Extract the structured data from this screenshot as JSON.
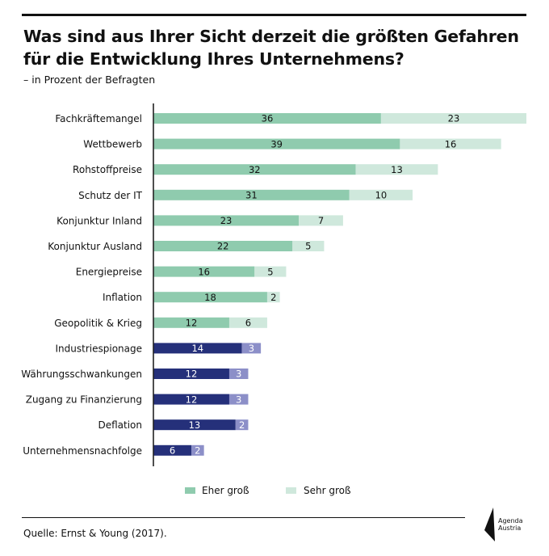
{
  "header": {
    "title_line1": "Was sind aus Ihrer Sicht derzeit die größten Gefahren",
    "title_line2": "für die Entwicklung Ihres Unternehmens?",
    "subtitle": "– in Prozent der Befragten"
  },
  "footer": {
    "source": "Quelle: Ernst & Young (2017).",
    "logo_line1": "Agenda",
    "logo_line2": "Austria"
  },
  "colors": {
    "green_dark": "#8fcbae",
    "green_light": "#cfe8dc",
    "navy_dark": "#25307a",
    "navy_light": "#8c8fc8",
    "axis": "#222222"
  },
  "chart_data": {
    "type": "bar",
    "orientation": "horizontal",
    "stacked": true,
    "categories": [
      "Fachkräftemangel",
      "Wettbewerb",
      "Rohstoffpreise",
      "Schutz der IT",
      "Konjunktur Inland",
      "Konjunktur Ausland",
      "Energiepreise",
      "Inflation",
      "Geopolitik & Krieg",
      "Industriespionage",
      "Währungsschwankungen",
      "Zugang zu Finanzierung",
      "Deflation",
      "Unternehmensnachfolge"
    ],
    "series": [
      {
        "name": "Eher groß",
        "values": [
          36,
          39,
          32,
          31,
          23,
          22,
          16,
          18,
          12,
          14,
          12,
          12,
          13,
          6
        ]
      },
      {
        "name": "Sehr groß",
        "values": [
          23,
          16,
          13,
          10,
          7,
          5,
          5,
          2,
          6,
          3,
          3,
          3,
          2,
          2
        ]
      }
    ],
    "highlight_from_index": 9,
    "xlim": [
      0,
      59
    ],
    "legend_position": "bottom",
    "grid": false
  }
}
